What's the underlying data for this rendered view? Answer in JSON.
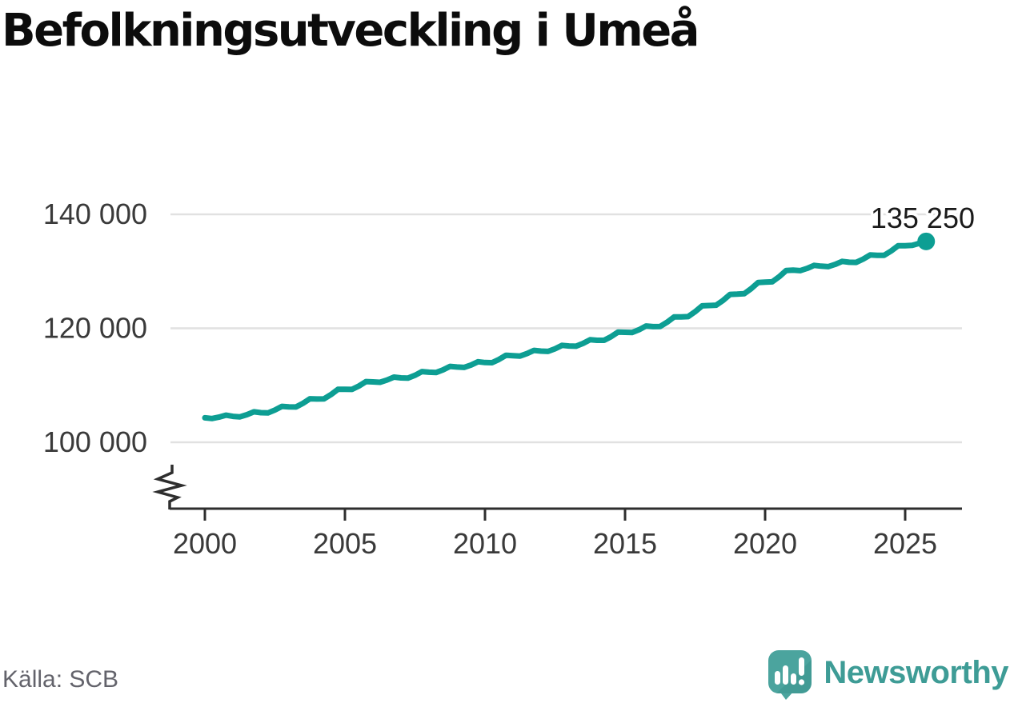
{
  "title": "Befolkningsutveckling i Umeå",
  "footer": {
    "source": "Källa: SCB",
    "brand_name": "Newsworthy"
  },
  "colors": {
    "title_text": "#0c0c0c",
    "line": "#0d9e93",
    "grid": "#e1e1e1",
    "axis": "#2e2e2e",
    "tick_text": "#3a3a3a",
    "annotation_text": "#1a1a1a",
    "source_text": "#63636b",
    "brand_text": "#3e9c96",
    "brand_bubble": "#4ba49e",
    "brand_bubble_shade": "#3d948e",
    "brand_glyph": "#ffffff"
  },
  "chart_data": {
    "type": "line",
    "title": "Befolkningsutveckling i Umeå",
    "xlabel": "",
    "ylabel": "",
    "grid": "horizontal-only",
    "legend": "none",
    "y_axis_break": true,
    "ylim": [
      100000,
      140000
    ],
    "xlim": [
      1998.8,
      2027
    ],
    "x_start": 2000,
    "x_step_years": 0.25,
    "x_end": 2025.75,
    "end_annotation": "135 250",
    "latest_value": 135250,
    "yticks": [
      {
        "value": 100000,
        "label": "100 000"
      },
      {
        "value": 120000,
        "label": "120 000"
      },
      {
        "value": 140000,
        "label": "140 000"
      }
    ],
    "xticks": [
      {
        "value": 2000,
        "label": "2000"
      },
      {
        "value": 2005,
        "label": "2005"
      },
      {
        "value": 2010,
        "label": "2010"
      },
      {
        "value": 2015,
        "label": "2015"
      },
      {
        "value": 2020,
        "label": "2020"
      },
      {
        "value": 2025,
        "label": "2025"
      }
    ],
    "series": [
      {
        "name": "Umeå",
        "color": "#0d9e93",
        "values": [
          104300,
          104175,
          104413,
          104763,
          104550,
          104465,
          104843,
          105353,
          105200,
          105150,
          105650,
          106300,
          106200,
          106190,
          106830,
          107640,
          107600,
          107620,
          108365,
          109295,
          109300,
          109280,
          109885,
          110655,
          110600,
          110520,
          110915,
          111445,
          111300,
          111250,
          111750,
          112400,
          112300,
          112240,
          112705,
          113315,
          113200,
          113130,
          113560,
          114130,
          114000,
          113970,
          114540,
          115270,
          115200,
          115130,
          115560,
          116130,
          116000,
          115940,
          116405,
          117015,
          116900,
          116850,
          117350,
          118000,
          117900,
          117890,
          118530,
          119340,
          119300,
          119250,
          119750,
          120400,
          120300,
          120320,
          121065,
          121995,
          122000,
          122050,
          122900,
          123950,
          124000,
          124050,
          124900,
          125950,
          126000,
          126060,
          126945,
          128035,
          128100,
          128160,
          129045,
          130135,
          130200,
          130120,
          130515,
          131045,
          130900,
          130820,
          131215,
          131745,
          131600,
          131570,
          132140,
          132870,
          132800,
          132820,
          133565,
          134495,
          134500,
          134550,
          134900,
          135250
        ]
      }
    ]
  }
}
